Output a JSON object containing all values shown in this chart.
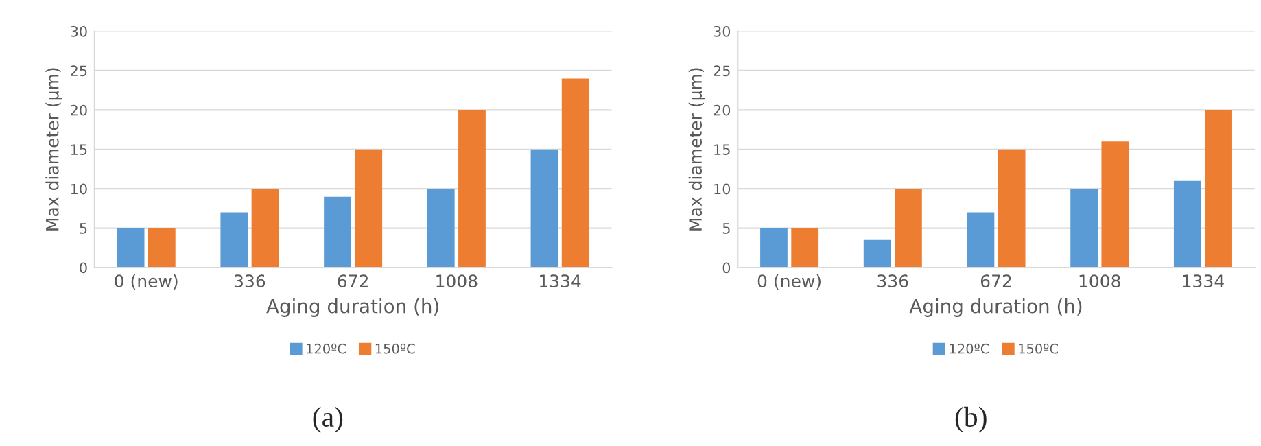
{
  "chart_data": [
    {
      "type": "bar",
      "xlabel": "Aging duration (h)",
      "ylabel": "Max diameter (μm)",
      "categories": [
        "0 (new)",
        "336",
        "672",
        "1008",
        "1334"
      ],
      "series": [
        {
          "name": "120ºC",
          "color": "#5b9bd5",
          "values": [
            5,
            7,
            9,
            10,
            15
          ]
        },
        {
          "name": "150ºC",
          "color": "#ed7d31",
          "values": [
            5,
            10,
            15,
            20,
            24
          ]
        }
      ],
      "ylim": [
        0,
        30
      ],
      "yticks": [
        0,
        5,
        10,
        15,
        20,
        25,
        30
      ],
      "grid": "y",
      "legend": "bottom",
      "annotations": [
        "(a)"
      ]
    },
    {
      "type": "bar",
      "xlabel": "Aging duration (h)",
      "ylabel": "Max diameter (μm)",
      "categories": [
        "0 (new)",
        "336",
        "672",
        "1008",
        "1334"
      ],
      "series": [
        {
          "name": "120ºC",
          "color": "#5b9bd5",
          "values": [
            5,
            3.5,
            7,
            10,
            11
          ]
        },
        {
          "name": "150ºC",
          "color": "#ed7d31",
          "values": [
            5,
            10,
            15,
            16,
            20
          ]
        }
      ],
      "ylim": [
        0,
        30
      ],
      "yticks": [
        0,
        5,
        10,
        15,
        20,
        25,
        30
      ],
      "grid": "y",
      "legend": "bottom",
      "annotations": [
        "(b)"
      ]
    }
  ]
}
